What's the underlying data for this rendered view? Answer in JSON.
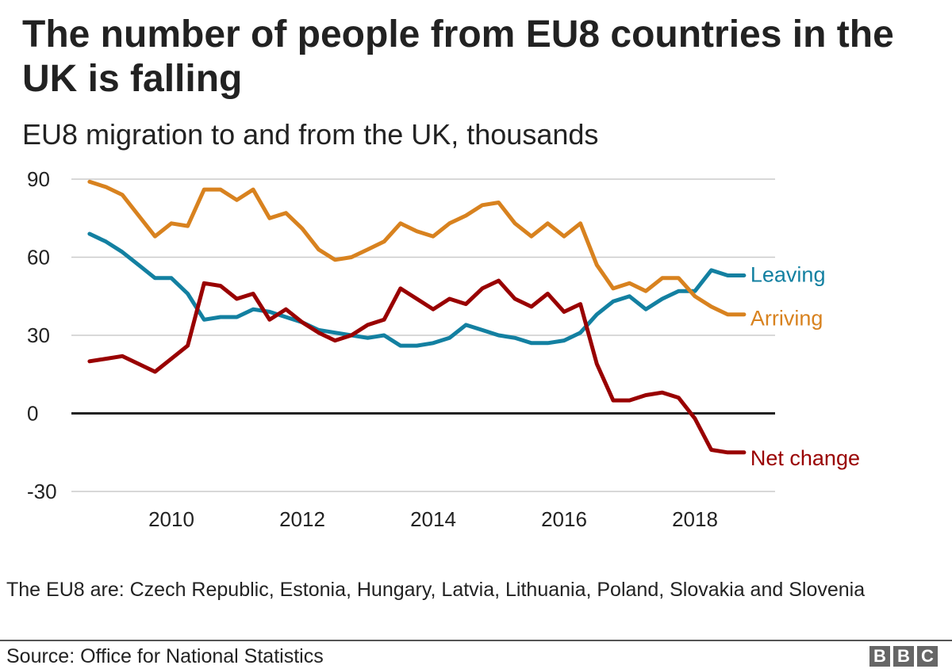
{
  "header": {
    "title": "The number of people from EU8 countries in the UK is falling",
    "subtitle": "EU8 migration to and from the UK, thousands"
  },
  "footer": {
    "note": "The EU8 are: Czech Republic, Estonia, Hungary, Latvia, Lithuania, Poland, Slovakia and Slovenia",
    "source": "Source: Office for National Statistics",
    "logo_letters": [
      "B",
      "B",
      "C"
    ]
  },
  "chart_data": {
    "type": "line",
    "title": "The number of people from EU8 countries in the UK is falling",
    "subtitle": "EU8 migration to and from the UK, thousands",
    "xlabel": "",
    "ylabel": "",
    "x_ticks": [
      "2010",
      "2012",
      "2014",
      "2016",
      "2018"
    ],
    "x_tick_values": [
      2010,
      2012,
      2014,
      2016,
      2018
    ],
    "y_ticks": [
      "90",
      "60",
      "30",
      "0",
      "-30"
    ],
    "y_tick_values": [
      90,
      60,
      30,
      0,
      -30
    ],
    "ylim": [
      -30,
      90
    ],
    "xlim": [
      2009.0,
      2019.2
    ],
    "grid": true,
    "legend": "direct labels at line ends",
    "x": [
      2008.75,
      2009.0,
      2009.25,
      2009.5,
      2009.75,
      2010.0,
      2010.25,
      2010.5,
      2010.75,
      2011.0,
      2011.25,
      2011.5,
      2011.75,
      2012.0,
      2012.25,
      2012.5,
      2012.75,
      2013.0,
      2013.25,
      2013.5,
      2013.75,
      2014.0,
      2014.25,
      2014.5,
      2014.75,
      2015.0,
      2015.25,
      2015.5,
      2015.75,
      2016.0,
      2016.25,
      2016.5,
      2016.75,
      2017.0,
      2017.25,
      2017.5,
      2017.75,
      2018.0,
      2018.25,
      2018.5,
      2018.75
    ],
    "series": [
      {
        "name": "Leaving",
        "color": "#1380a1",
        "values": [
          69,
          66,
          62,
          57,
          52,
          52,
          46,
          36,
          37,
          37,
          40,
          39,
          37,
          35,
          32,
          31,
          30,
          29,
          30,
          26,
          26,
          27,
          29,
          34,
          32,
          30,
          29,
          27,
          27,
          28,
          31,
          38,
          43,
          45,
          40,
          44,
          47,
          47,
          55,
          53,
          53
        ]
      },
      {
        "name": "Arriving",
        "color": "#d8821f",
        "values": [
          89,
          87,
          84,
          76,
          68,
          73,
          72,
          86,
          86,
          82,
          86,
          75,
          77,
          71,
          63,
          59,
          60,
          63,
          66,
          73,
          70,
          68,
          73,
          76,
          80,
          81,
          73,
          68,
          73,
          68,
          73,
          57,
          48,
          50,
          47,
          52,
          52,
          45,
          41,
          38,
          38
        ]
      },
      {
        "name": "Net change",
        "color": "#990000",
        "values": [
          20,
          21,
          22,
          19,
          16,
          21,
          26,
          50,
          49,
          44,
          46,
          36,
          40,
          35,
          31,
          28,
          30,
          34,
          36,
          48,
          44,
          40,
          44,
          42,
          48,
          51,
          44,
          41,
          46,
          39,
          42,
          19,
          5,
          5,
          7,
          8,
          6,
          -2,
          -14,
          -15,
          -15
        ]
      }
    ],
    "zero_line_color": "#222222",
    "grid_color": "#cccccc"
  }
}
